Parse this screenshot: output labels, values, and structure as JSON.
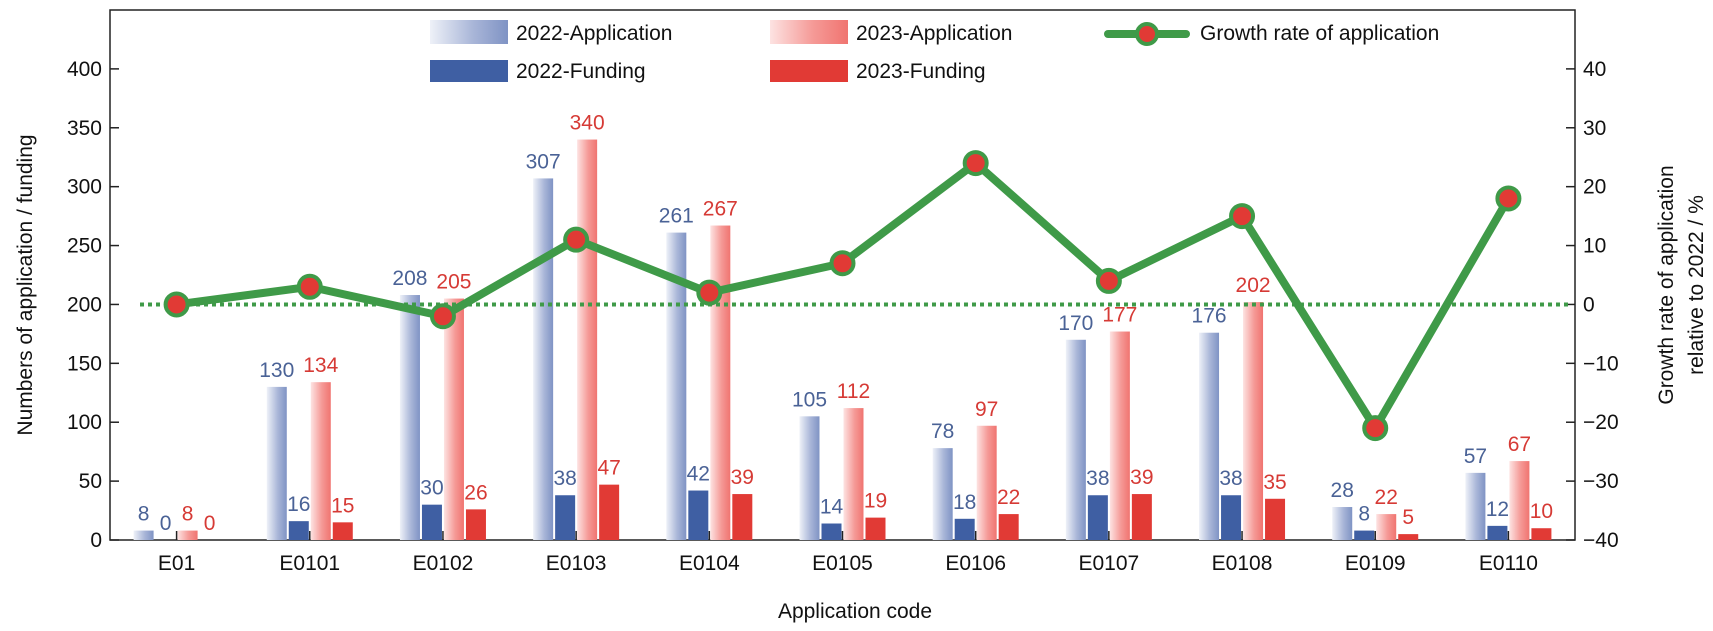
{
  "chart_data": {
    "type": "bar",
    "xlabel": "Application code",
    "ylabel": "Numbers of application / funding",
    "y2label_line1": "Growth rate of application",
    "y2label_line2": "relative to 2022 / %",
    "ylim": [
      0,
      450
    ],
    "yticks": [
      0,
      50,
      100,
      150,
      200,
      250,
      300,
      350,
      400
    ],
    "y2lim": [
      -40,
      50
    ],
    "y2ticks": [
      -40,
      -30,
      -20,
      -10,
      0,
      10,
      20,
      30,
      40
    ],
    "y2ticklabels": [
      "−40",
      "−30",
      "−20",
      "−10",
      "0",
      "10",
      "20",
      "30",
      "40"
    ],
    "categories": [
      "E01",
      "E0101",
      "E0102",
      "E0103",
      "E0104",
      "E0105",
      "E0106",
      "E0107",
      "E0108",
      "E0109",
      "E0110"
    ],
    "series": [
      {
        "name": "2022-Application",
        "kind": "bar",
        "values": [
          8,
          130,
          208,
          307,
          261,
          105,
          78,
          170,
          176,
          28,
          57
        ],
        "color": "#4a6296"
      },
      {
        "name": "2022-Funding",
        "kind": "bar",
        "values": [
          0,
          16,
          30,
          38,
          42,
          14,
          18,
          38,
          38,
          8,
          12
        ],
        "color": "#3f5fa3"
      },
      {
        "name": "2023-Application",
        "kind": "bar",
        "values": [
          8,
          134,
          205,
          340,
          267,
          112,
          97,
          177,
          202,
          22,
          67
        ],
        "color": "#e85a56"
      },
      {
        "name": "2023-Funding",
        "kind": "bar",
        "values": [
          0,
          15,
          26,
          47,
          39,
          19,
          22,
          39,
          35,
          5,
          10
        ],
        "color": "#e13a35"
      },
      {
        "name": "Growth rate of application",
        "kind": "line",
        "axis": "right",
        "values": [
          0,
          3,
          -2,
          11,
          2,
          7,
          24,
          4,
          15,
          -21,
          18
        ],
        "color": "#3f9a48"
      }
    ],
    "reference_line": {
      "axis": "right",
      "value": 0,
      "style": "dotted",
      "color": "#3f9a48"
    },
    "legend_placement": "top",
    "grid": false
  }
}
